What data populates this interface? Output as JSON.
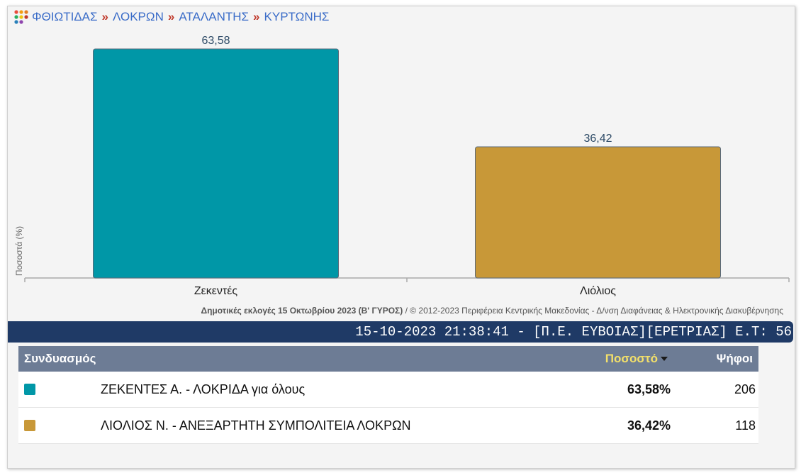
{
  "breadcrumb": {
    "items": [
      "ΦΘΙΩΤΙΔΑΣ",
      "ΛΟΚΡΩΝ",
      "ΑΤΑΛΑΝΤΗΣ",
      "ΚΥΡΤΩΝΗΣ"
    ],
    "separator": "»"
  },
  "chart_data": {
    "type": "bar",
    "categories": [
      "Ζεκεντές",
      "Λιόλιος"
    ],
    "values": [
      63.58,
      36.42
    ],
    "value_labels": [
      "63,58",
      "36,42"
    ],
    "colors": [
      "#0097a7",
      "#c89838"
    ],
    "ylabel": "Ποσοστά (%)",
    "ylim": [
      0,
      63.58
    ],
    "grid": false,
    "legend": "none"
  },
  "caption": {
    "bold": "Δημοτικές εκλογές 15 Οκτωβρίου 2023 (Β' ΓΥΡΟΣ)",
    "rest": " / © 2012-2023 Περιφέρεια Κεντρικής Μακεδονίας - Δ/νση Διαφάνειας & Ηλεκτρονικής Διακυβέρνησης"
  },
  "ticker": "15-10-2023 21:38:41 - [Π.Ε. ΕΥΒΟΙΑΣ][ΕΡΕΤΡΙΑΣ]  Ε.Τ: 56",
  "table": {
    "headers": {
      "name": "Συνδυασμός",
      "pct": "Ποσοστό",
      "votes": "Ψήφοι"
    },
    "rows": [
      {
        "color": "#0097a7",
        "name": "ΖΕΚΕΝΤΕΣ Α. - ΛΟΚΡΙΔΑ για όλους",
        "pct": "63,58%",
        "votes": "206"
      },
      {
        "color": "#c89838",
        "name": "ΛΙΟΛΙΟΣ Ν. - ΑΝΕΞΑΡΤΗΤΗ ΣΥΜΠΟΛΙΤΕΙΑ ΛΟΚΡΩΝ",
        "pct": "36,42%",
        "votes": "118"
      }
    ]
  }
}
